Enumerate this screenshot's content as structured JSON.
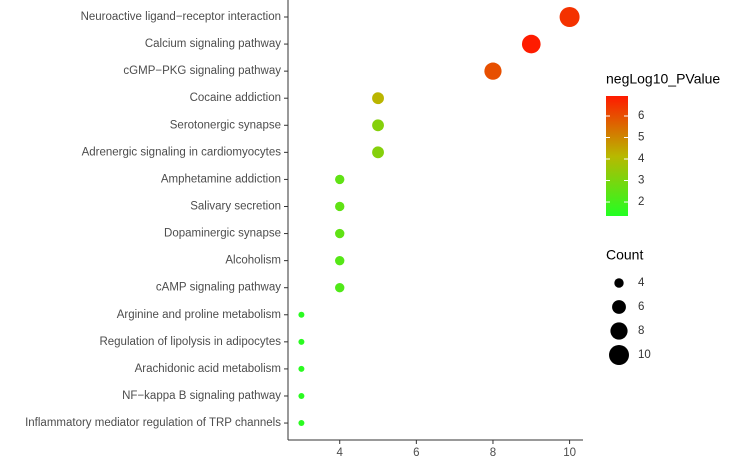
{
  "chart_data": {
    "type": "dot",
    "categories": [
      "Neuroactive ligand−receptor interaction",
      "Calcium signaling pathway",
      "cGMP−PKG signaling pathway",
      "Cocaine addiction",
      "Serotonergic synapse",
      "Adrenergic signaling in cardiomyocytes",
      "Amphetamine addiction",
      "Salivary secretion",
      "Dopaminergic synapse",
      "Alcoholism",
      "cAMP signaling pathway",
      "Arginine and proline metabolism",
      "Regulation of lipolysis in adipocytes",
      "Arachidonic acid metabolism",
      "NF−kappa B signaling pathway",
      "Inflammatory mediator regulation of TRP channels"
    ],
    "values": [
      10,
      9,
      8,
      5,
      5,
      5,
      4,
      4,
      4,
      4,
      4,
      3,
      3,
      3,
      3,
      3
    ],
    "color_values": [
      6.5,
      6.9,
      6.0,
      4.2,
      3.2,
      3.2,
      2.5,
      2.5,
      2.5,
      2.3,
      2.2,
      1.5,
      1.5,
      1.5,
      1.5,
      1.5
    ],
    "xlim": [
      2.65,
      10.35
    ],
    "xticks": [
      4,
      6,
      8,
      10
    ],
    "color_title": "negLog10_PValue",
    "color_lim": [
      1.35,
      6.93
    ],
    "color_ticks": [
      2,
      3,
      4,
      5,
      6
    ],
    "colors": [
      "#22ff22",
      "#b8b800",
      "#ff1a00"
    ],
    "size_title": "Count",
    "size_legend": [
      4,
      6,
      8,
      10
    ]
  }
}
